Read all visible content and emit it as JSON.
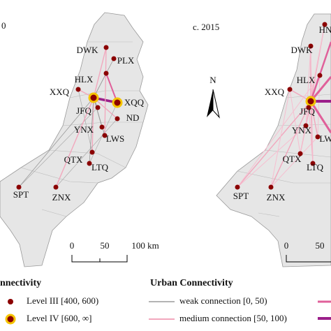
{
  "left_map": {
    "title": "0",
    "cities": [
      "DWK",
      "PLX",
      "HLX",
      "XXQ",
      "XQQ",
      "JFQ",
      "ND",
      "YNX",
      "LWS",
      "QTX",
      "LTQ",
      "SPT",
      "ZNX"
    ],
    "scale": [
      "0",
      "50",
      "100 km"
    ]
  },
  "right_map": {
    "title": "c. 2015",
    "cities": [
      "HN",
      "DWK",
      "HLX",
      "XXQ",
      "JFQ",
      "YNX",
      "LW",
      "QTX",
      "LTQ",
      "SPT",
      "ZNX"
    ],
    "north": "N",
    "scale": [
      "0",
      "50"
    ]
  },
  "legend": {
    "city_title": "nnectivity",
    "levels": [
      "Level III [400, 600)",
      "Level IV [600, ∞]"
    ],
    "connection_title": "Urban Connectivity",
    "connections": [
      "weak connection [0, 50)",
      "medium connection [50, 100)"
    ]
  }
}
